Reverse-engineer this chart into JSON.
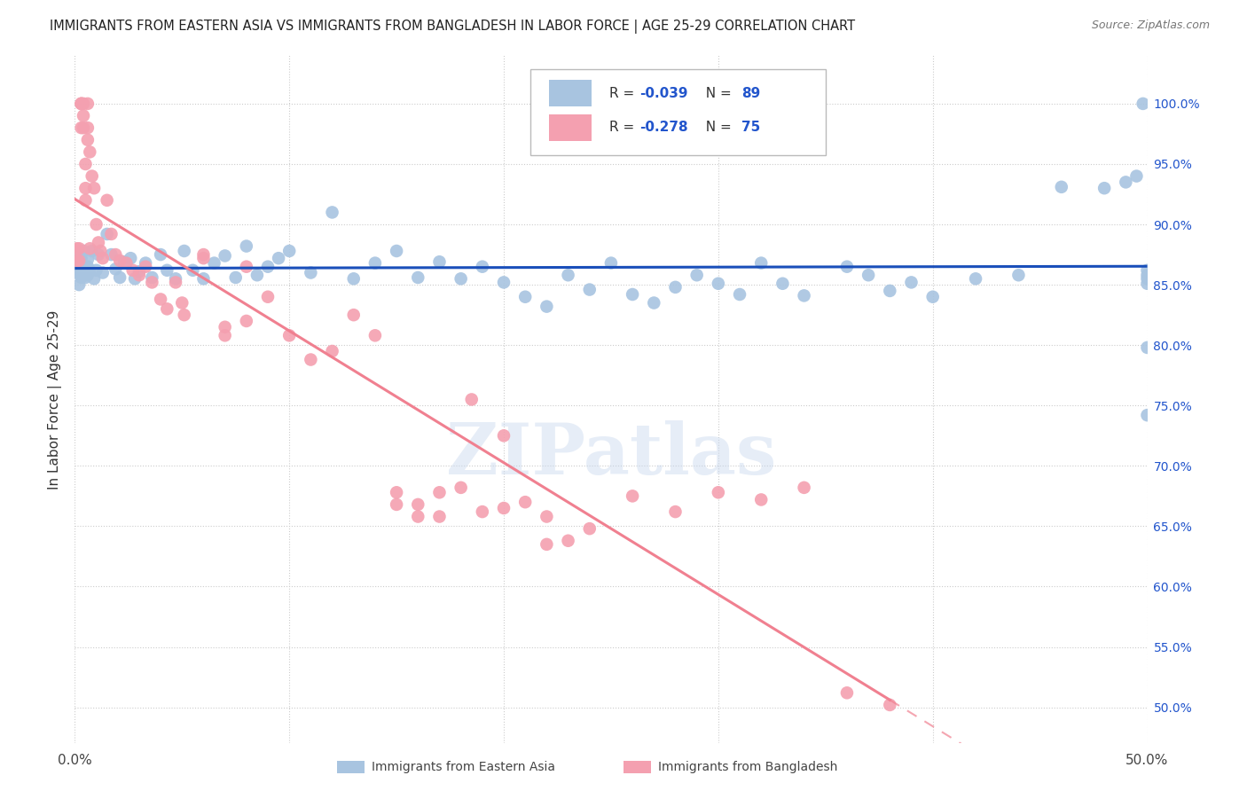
{
  "title": "IMMIGRANTS FROM EASTERN ASIA VS IMMIGRANTS FROM BANGLADESH IN LABOR FORCE | AGE 25-29 CORRELATION CHART",
  "source": "Source: ZipAtlas.com",
  "ylabel": "In Labor Force | Age 25-29",
  "xlim": [
    0.0,
    0.5
  ],
  "ylim": [
    0.47,
    1.04
  ],
  "y_ticks": [
    0.5,
    0.55,
    0.6,
    0.65,
    0.7,
    0.75,
    0.8,
    0.85,
    0.9,
    0.95,
    1.0
  ],
  "y_tick_labels": [
    "50.0%",
    "55.0%",
    "60.0%",
    "65.0%",
    "70.0%",
    "75.0%",
    "80.0%",
    "85.0%",
    "90.0%",
    "95.0%",
    "100.0%"
  ],
  "x_ticks": [
    0.0,
    0.1,
    0.2,
    0.3,
    0.4,
    0.5
  ],
  "x_tick_labels": [
    "0.0%",
    "",
    "",
    "",
    "",
    "50.0%"
  ],
  "R_eastern_asia": -0.039,
  "N_eastern_asia": 89,
  "R_bangladesh": -0.278,
  "N_bangladesh": 75,
  "color_eastern": "#a8c4e0",
  "color_bangladesh": "#f4a0b0",
  "color_line_eastern": "#1a4fba",
  "color_line_bangladesh": "#f08090",
  "watermark": "ZIPatlas",
  "eastern_asia_x": [
    0.001,
    0.001,
    0.002,
    0.002,
    0.002,
    0.003,
    0.003,
    0.003,
    0.004,
    0.004,
    0.004,
    0.005,
    0.005,
    0.006,
    0.006,
    0.006,
    0.007,
    0.008,
    0.009,
    0.01,
    0.011,
    0.013,
    0.015,
    0.017,
    0.019,
    0.021,
    0.023,
    0.026,
    0.028,
    0.03,
    0.033,
    0.036,
    0.04,
    0.043,
    0.047,
    0.051,
    0.055,
    0.06,
    0.065,
    0.07,
    0.075,
    0.08,
    0.085,
    0.09,
    0.095,
    0.1,
    0.11,
    0.12,
    0.13,
    0.14,
    0.15,
    0.16,
    0.17,
    0.18,
    0.19,
    0.2,
    0.21,
    0.22,
    0.23,
    0.24,
    0.25,
    0.26,
    0.27,
    0.28,
    0.29,
    0.3,
    0.31,
    0.32,
    0.33,
    0.34,
    0.36,
    0.37,
    0.38,
    0.39,
    0.4,
    0.42,
    0.44,
    0.46,
    0.48,
    0.49,
    0.495,
    0.498,
    0.5,
    0.5,
    0.5,
    0.5,
    0.5,
    0.5
  ],
  "eastern_asia_y": [
    0.87,
    0.86,
    0.875,
    0.862,
    0.85,
    0.868,
    0.856,
    0.872,
    0.865,
    0.858,
    0.878,
    0.863,
    0.856,
    0.871,
    0.858,
    0.865,
    0.862,
    0.878,
    0.855,
    0.862,
    0.875,
    0.86,
    0.892,
    0.875,
    0.863,
    0.856,
    0.869,
    0.872,
    0.855,
    0.861,
    0.868,
    0.856,
    0.875,
    0.862,
    0.855,
    0.878,
    0.862,
    0.855,
    0.868,
    0.874,
    0.856,
    0.882,
    0.858,
    0.865,
    0.872,
    0.878,
    0.86,
    0.91,
    0.855,
    0.868,
    0.878,
    0.856,
    0.869,
    0.855,
    0.865,
    0.852,
    0.84,
    0.832,
    0.858,
    0.846,
    0.868,
    0.842,
    0.835,
    0.848,
    0.858,
    0.851,
    0.842,
    0.868,
    0.851,
    0.841,
    0.865,
    0.858,
    0.845,
    0.852,
    0.84,
    0.855,
    0.858,
    0.931,
    0.93,
    0.935,
    0.94,
    1.0,
    0.798,
    0.742,
    0.851,
    0.858,
    0.862,
    0.855
  ],
  "bangladesh_x": [
    0.001,
    0.001,
    0.002,
    0.002,
    0.003,
    0.003,
    0.003,
    0.003,
    0.004,
    0.004,
    0.004,
    0.005,
    0.005,
    0.005,
    0.006,
    0.006,
    0.006,
    0.007,
    0.007,
    0.008,
    0.009,
    0.01,
    0.011,
    0.012,
    0.013,
    0.015,
    0.017,
    0.019,
    0.021,
    0.024,
    0.027,
    0.03,
    0.033,
    0.036,
    0.04,
    0.043,
    0.047,
    0.051,
    0.06,
    0.07,
    0.08,
    0.09,
    0.1,
    0.11,
    0.12,
    0.13,
    0.14,
    0.15,
    0.16,
    0.17,
    0.185,
    0.2,
    0.22,
    0.24,
    0.26,
    0.28,
    0.3,
    0.32,
    0.34,
    0.36,
    0.38,
    0.2,
    0.21,
    0.22,
    0.23,
    0.05,
    0.06,
    0.07,
    0.08,
    0.15,
    0.16,
    0.17,
    0.18,
    0.19
  ],
  "bangladesh_y": [
    0.87,
    0.88,
    0.87,
    0.88,
    1.0,
    1.0,
    1.0,
    0.98,
    1.0,
    0.98,
    0.99,
    0.93,
    0.95,
    0.92,
    1.0,
    0.97,
    0.98,
    0.96,
    0.88,
    0.94,
    0.93,
    0.9,
    0.885,
    0.878,
    0.872,
    0.92,
    0.892,
    0.875,
    0.87,
    0.868,
    0.862,
    0.858,
    0.865,
    0.852,
    0.838,
    0.83,
    0.852,
    0.825,
    0.875,
    0.808,
    0.865,
    0.84,
    0.808,
    0.788,
    0.795,
    0.825,
    0.808,
    0.678,
    0.668,
    0.658,
    0.755,
    0.725,
    0.658,
    0.648,
    0.675,
    0.662,
    0.678,
    0.672,
    0.682,
    0.512,
    0.502,
    0.665,
    0.67,
    0.635,
    0.638,
    0.835,
    0.872,
    0.815,
    0.82,
    0.668,
    0.658,
    0.678,
    0.682,
    0.662
  ]
}
